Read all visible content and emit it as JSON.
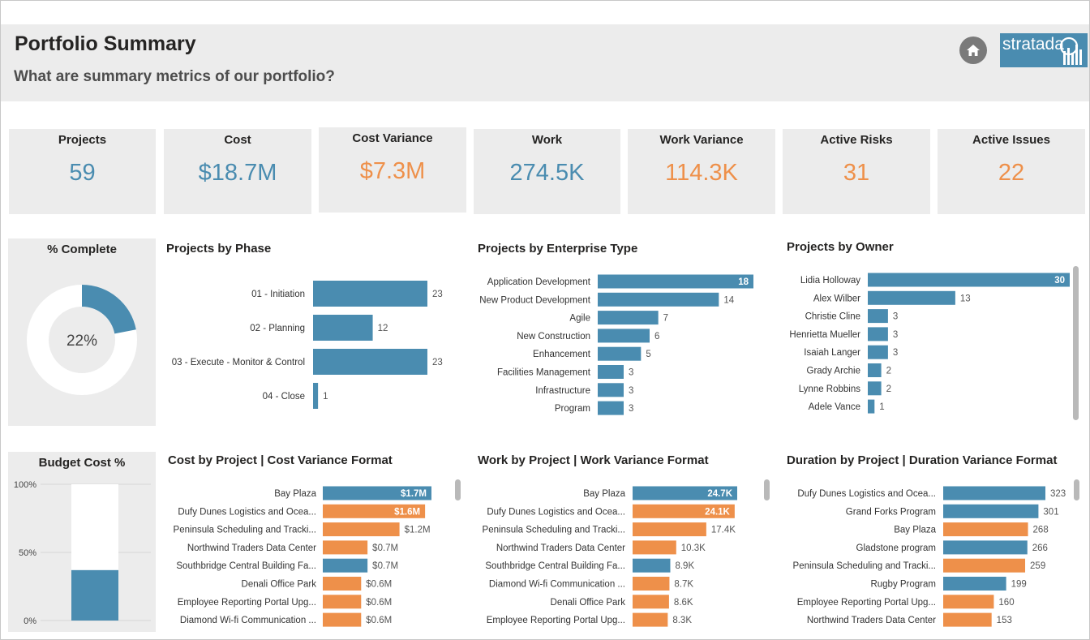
{
  "header": {
    "title": "Portfolio Summary",
    "subtitle": "What are summary metrics of our portfolio?",
    "logo_text": "stratada"
  },
  "kpis": [
    {
      "label": "Projects",
      "value": "59",
      "color": "#4a8cb0"
    },
    {
      "label": "Cost",
      "value": "$18.7M",
      "color": "#4a8cb0"
    },
    {
      "label": "Cost Variance",
      "value": "$7.3M",
      "color": "#ee904a"
    },
    {
      "label": "Work",
      "value": "274.5K",
      "color": "#4a8cb0"
    },
    {
      "label": "Work Variance",
      "value": "114.3K",
      "color": "#ee904a"
    },
    {
      "label": "Active Risks",
      "value": "31",
      "color": "#ee904a"
    },
    {
      "label": "Active Issues",
      "value": "22",
      "color": "#ee904a"
    }
  ],
  "colors": {
    "blue": "#4a8cb0",
    "orange": "#ee904a",
    "panel": "#ececec"
  },
  "chart_data": [
    {
      "id": "complete",
      "type": "pie",
      "title": "% Complete",
      "center_label": "22%",
      "value": 0.22
    },
    {
      "id": "phase",
      "type": "bar",
      "title": "Projects by Phase",
      "categories": [
        "01 - Initiation",
        "02 - Planning",
        "03 - Execute - Monitor & Control",
        "04 - Close"
      ],
      "values": [
        23,
        12,
        23,
        1
      ],
      "labels": [
        "23",
        "12",
        "23",
        "1"
      ],
      "max": 23
    },
    {
      "id": "enterprise",
      "type": "bar",
      "title": "Projects by Enterprise Type",
      "categories": [
        "Application Development",
        "New Product Development",
        "Agile",
        "New Construction",
        "Enhancement",
        "Facilities Management",
        "Infrastructure",
        "Program"
      ],
      "values": [
        18,
        14,
        7,
        6,
        5,
        3,
        3,
        3
      ],
      "labels": [
        "18",
        "14",
        "7",
        "6",
        "5",
        "3",
        "3",
        "3"
      ],
      "max": 18
    },
    {
      "id": "owner",
      "type": "bar",
      "title": "Projects by Owner",
      "categories": [
        "Lidia Holloway",
        "Alex Wilber",
        "Christie Cline",
        "Henrietta Mueller",
        "Isaiah Langer",
        "Grady Archie",
        "Lynne Robbins",
        "Adele Vance"
      ],
      "values": [
        30,
        13,
        3,
        3,
        3,
        2,
        2,
        1
      ],
      "labels": [
        "30",
        "13",
        "3",
        "3",
        "3",
        "2",
        "2",
        "1"
      ],
      "max": 30
    },
    {
      "id": "budget",
      "type": "bar",
      "title": "Budget Cost %",
      "ylim": [
        0,
        100
      ],
      "yticks": [
        "100%",
        "50%",
        "0%"
      ],
      "value": 37
    },
    {
      "id": "cost",
      "type": "bar",
      "title": "Cost by Project | Cost Variance Format",
      "categories": [
        "Bay Plaza",
        "Dufy Dunes Logistics and Ocea...",
        "Peninsula Scheduling and Tracki...",
        "Northwind Traders Data Center",
        "Southbridge Central Building Fa...",
        "Denali Office Park",
        "Employee Reporting Portal Upg...",
        "Diamond Wi-fi Communication ..."
      ],
      "values": [
        1.7,
        1.6,
        1.2,
        0.7,
        0.7,
        0.6,
        0.6,
        0.6
      ],
      "labels": [
        "$1.7M",
        "$1.6M",
        "$1.2M",
        "$0.7M",
        "$0.7M",
        "$0.6M",
        "$0.6M",
        "$0.6M"
      ],
      "colors": [
        "blue",
        "orange",
        "orange",
        "orange",
        "blue",
        "orange",
        "orange",
        "orange"
      ],
      "max": 1.7
    },
    {
      "id": "work",
      "type": "bar",
      "title": "Work by Project | Work Variance Format",
      "categories": [
        "Bay Plaza",
        "Dufy Dunes Logistics and Ocea...",
        "Peninsula Scheduling and Tracki...",
        "Northwind Traders Data Center",
        "Southbridge Central Building Fa...",
        "Diamond Wi-fi Communication ...",
        "Denali Office Park",
        "Employee Reporting Portal Upg..."
      ],
      "values": [
        24.7,
        24.1,
        17.4,
        10.3,
        8.9,
        8.7,
        8.6,
        8.3
      ],
      "labels": [
        "24.7K",
        "24.1K",
        "17.4K",
        "10.3K",
        "8.9K",
        "8.7K",
        "8.6K",
        "8.3K"
      ],
      "colors": [
        "blue",
        "orange",
        "orange",
        "orange",
        "blue",
        "orange",
        "orange",
        "orange"
      ],
      "max": 24.7
    },
    {
      "id": "duration",
      "type": "bar",
      "title": "Duration by Project | Duration Variance Format",
      "categories": [
        "Dufy Dunes Logistics and Ocea...",
        "Grand Forks Program",
        "Bay Plaza",
        "Gladstone program",
        "Peninsula Scheduling and Tracki...",
        "Rugby Program",
        "Employee Reporting Portal Upg...",
        "Northwind Traders Data Center"
      ],
      "values": [
        323,
        301,
        268,
        266,
        259,
        199,
        160,
        153
      ],
      "labels": [
        "323",
        "301",
        "268",
        "266",
        "259",
        "199",
        "160",
        "153"
      ],
      "colors": [
        "blue",
        "blue",
        "orange",
        "blue",
        "orange",
        "blue",
        "orange",
        "orange"
      ],
      "max": 323
    }
  ]
}
